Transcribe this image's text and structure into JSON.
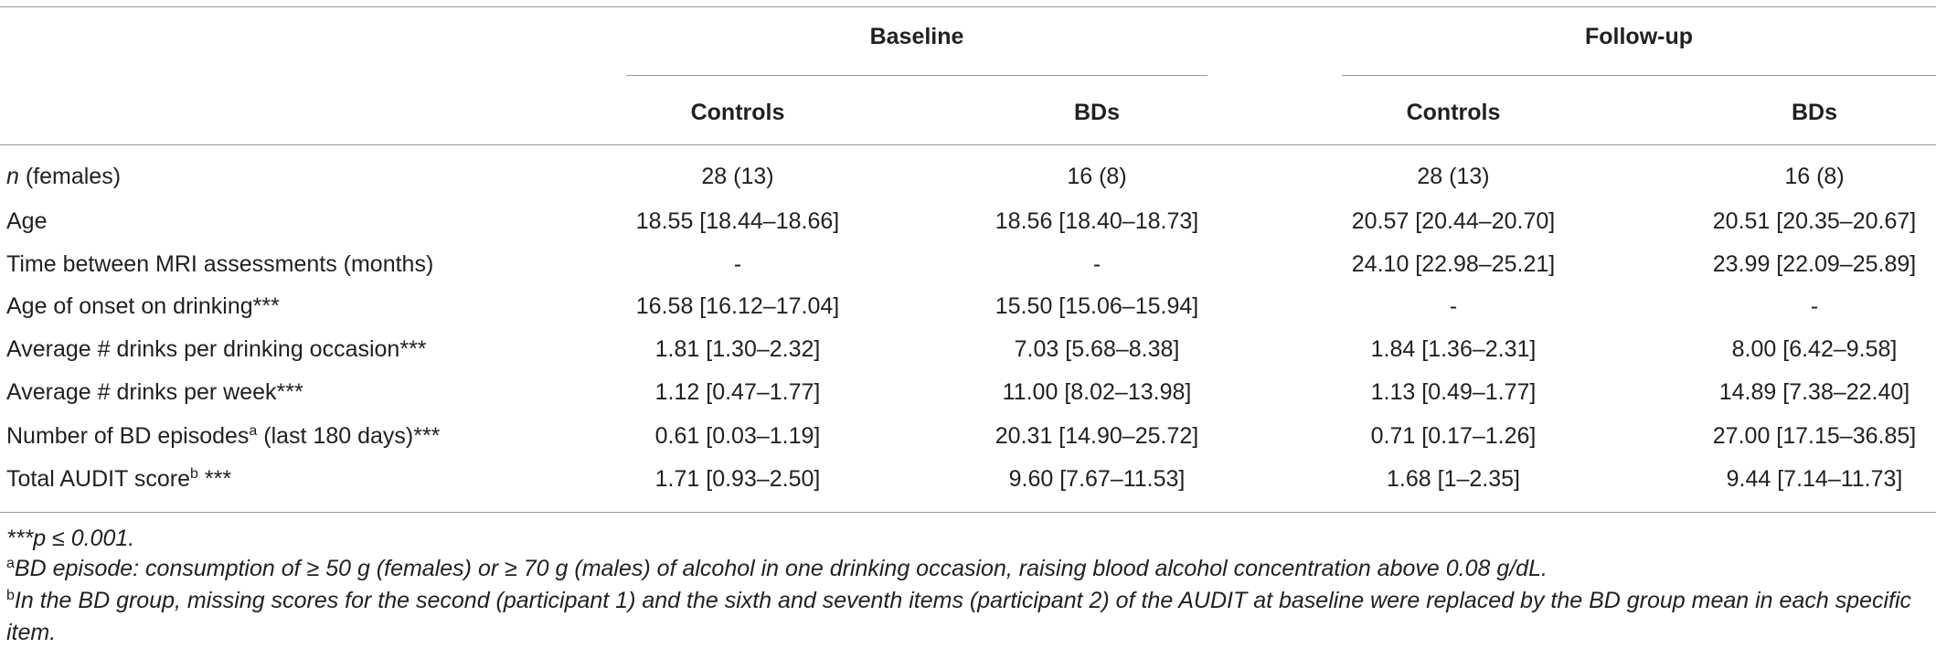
{
  "table": {
    "groups": [
      "Baseline",
      "Follow-up"
    ],
    "columns": [
      "Controls",
      "BDs",
      "Controls",
      "BDs"
    ],
    "rows": [
      {
        "label": [
          "n",
          " (females)"
        ],
        "cells": [
          "28 (13)",
          "16 (8)",
          "28 (13)",
          "16 (8)"
        ]
      },
      {
        "label": "Age",
        "cells": [
          "18.55 [18.44–18.66]",
          "18.56 [18.40–18.73]",
          "20.57 [20.44–20.70]",
          "20.51 [20.35–20.67]"
        ]
      },
      {
        "label": "Time between MRI assessments (months)",
        "cells": [
          "-",
          "-",
          "24.10 [22.98–25.21]",
          "23.99 [22.09–25.89]"
        ]
      },
      {
        "label": "Age of onset on drinking***",
        "cells": [
          "16.58 [16.12–17.04]",
          "15.50 [15.06–15.94]",
          "-",
          "-"
        ]
      },
      {
        "label": "Average # drinks per drinking occasion***",
        "cells": [
          "1.81 [1.30–2.32]",
          "7.03 [5.68–8.38]",
          "1.84 [1.36–2.31]",
          "8.00 [6.42–9.58]"
        ]
      },
      {
        "label": "Average # drinks per week***",
        "cells": [
          "1.12 [0.47–1.77]",
          "11.00 [8.02–13.98]",
          "1.13 [0.49–1.77]",
          "14.89 [7.38–22.40]"
        ]
      },
      {
        "label": [
          "Number of BD episodes",
          "a",
          " (last 180 days)***"
        ],
        "cells": [
          "0.61 [0.03–1.19]",
          "20.31 [14.90–25.72]",
          "0.71 [0.17–1.26]",
          "27.00 [17.15–36.85]"
        ]
      },
      {
        "label": [
          "Total AUDIT score",
          "b",
          " ***"
        ],
        "cells": [
          "1.71 [0.93–2.50]",
          "9.60 [7.67–11.53]",
          "1.68 [1–2.35]",
          "9.44 [7.14–11.73]"
        ]
      }
    ]
  },
  "notes": [
    [
      "***",
      "p ≤ 0.001."
    ],
    [
      "a",
      "BD episode: consumption of ≥ 50 g (females) or ≥ 70 g (males) of alcohol in one drinking occasion, raising blood alcohol concentration above 0.08 g/dL."
    ],
    [
      "b",
      "In the BD group, missing scores for the second (participant 1) and the sixth and seventh items (participant 2) of the AUDIT at baseline were replaced by the BD group mean in each specific item."
    ]
  ]
}
